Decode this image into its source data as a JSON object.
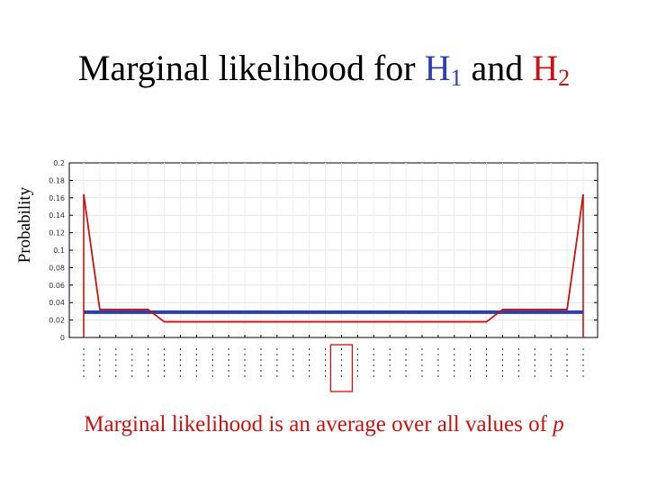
{
  "title": {
    "prefix": "Marginal likelihood for ",
    "h1": "H",
    "h1_sub": "1",
    "middle": " and ",
    "h2": "H",
    "h2_sub": "2"
  },
  "caption": {
    "text": "Marginal likelihood is an average over all values of ",
    "variable": "p"
  },
  "colors": {
    "h1": "#2c3fb0",
    "h2": "#cc1111",
    "caption": "#cc1111",
    "highlight": "#cc1111"
  },
  "chart_data": {
    "type": "line",
    "ylabel": "Probability",
    "ylim": [
      0,
      0.2
    ],
    "yticks": [
      0,
      0.02,
      0.04,
      0.06,
      0.08,
      0.1,
      0.12,
      0.14,
      0.16,
      0.18,
      0.2
    ],
    "ytick_labels": [
      "0",
      "0.02",
      "0.04",
      "0.06",
      "0.08",
      "0.1",
      "0.12",
      "0.14",
      "0.16",
      "0.18",
      "0.2"
    ],
    "grid": true,
    "n_categories": 32,
    "highlighted_category_index": 16,
    "series": [
      {
        "name": "H1",
        "color": "#2c3fb0",
        "values": [
          0.029,
          0.029,
          0.029,
          0.029,
          0.029,
          0.029,
          0.029,
          0.029,
          0.029,
          0.029,
          0.029,
          0.029,
          0.029,
          0.029,
          0.029,
          0.029,
          0.029,
          0.029,
          0.029,
          0.029,
          0.029,
          0.029,
          0.029,
          0.029,
          0.029,
          0.029,
          0.029,
          0.029,
          0.029,
          0.029,
          0.029,
          0.029
        ]
      },
      {
        "name": "H2",
        "color": "#cc1111",
        "values": [
          0.164,
          0.032,
          0.032,
          0.032,
          0.032,
          0.018,
          0.018,
          0.018,
          0.018,
          0.018,
          0.018,
          0.018,
          0.018,
          0.018,
          0.018,
          0.018,
          0.018,
          0.018,
          0.018,
          0.018,
          0.018,
          0.018,
          0.018,
          0.018,
          0.018,
          0.018,
          0.032,
          0.032,
          0.032,
          0.032,
          0.032,
          0.164
        ]
      }
    ]
  }
}
